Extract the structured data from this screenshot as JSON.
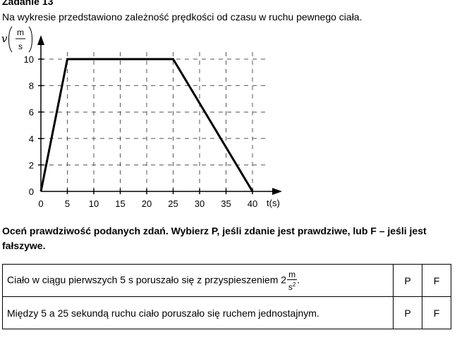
{
  "task": {
    "title": "Zadanie 13",
    "intro": "Na wykresie przedstawiono zależność prędkości od czasu w ruchu pewnego ciała."
  },
  "chart_data": {
    "type": "line",
    "ylabel_symbol": "v",
    "ylabel_unit_num": "m",
    "ylabel_unit_den": "s",
    "xlabel": "t(s)",
    "x_ticks": [
      0,
      5,
      10,
      15,
      20,
      25,
      30,
      35,
      40
    ],
    "y_ticks": [
      0,
      2,
      4,
      6,
      8,
      10
    ],
    "xlim": [
      0,
      40
    ],
    "ylim": [
      0,
      10
    ],
    "grid": "dashed",
    "series": [
      {
        "x": [
          0,
          5,
          25,
          40
        ],
        "y": [
          0,
          10,
          10,
          0
        ]
      }
    ]
  },
  "instruction": "Oceń prawdziwość podanych zdań. Wybierz P, jeśli zdanie jest prawdziwe, lub F – jeśli jest fałszywe.",
  "statements": [
    {
      "text": "Ciało w ciągu pierwszych 5 s poruszało się z przyspieszeniem 2",
      "frac_num": "m",
      "frac_den": "s",
      "frac_exp": "2",
      "tail": ".",
      "p": "P",
      "f": "F"
    },
    {
      "text": "Między 5 a 25 sekundą ruchu ciało poruszało się ruchem jednostajnym.",
      "p": "P",
      "f": "F"
    }
  ]
}
